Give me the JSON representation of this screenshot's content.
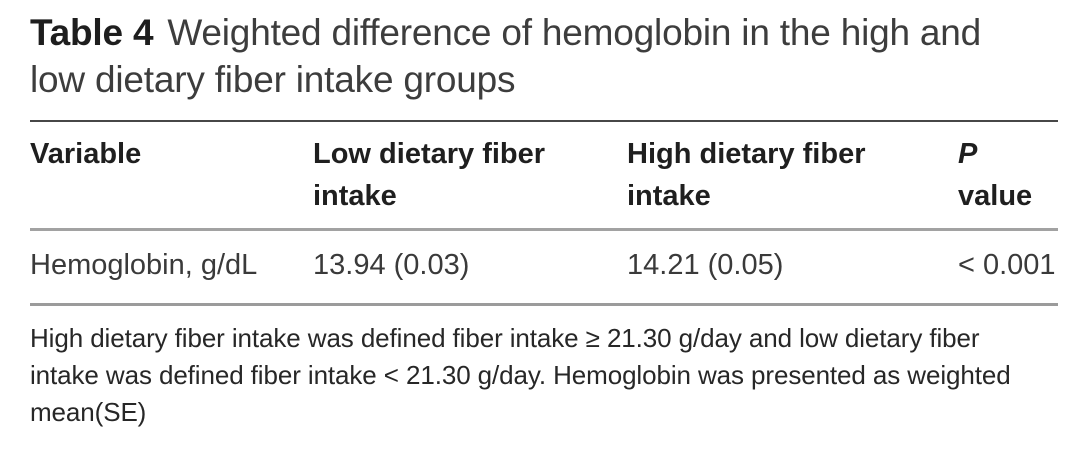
{
  "table": {
    "label": "Table 4",
    "title": "Weighted difference of hemoglobin in the high and low dietary fiber intake groups",
    "columns": [
      {
        "label": "Variable"
      },
      {
        "label": "Low dietary fiber intake"
      },
      {
        "label": "High dietary fiber intake"
      },
      {
        "label_italic": "P",
        "label_rest": "value"
      }
    ],
    "rows": [
      [
        "Hemoglobin, g/dL",
        "13.94 (0.03)",
        "14.21 (0.05)",
        "< 0.001"
      ]
    ],
    "footnote": "High dietary fiber intake was defined fiber intake ≥ 21.30 g/day and low dietary fiber intake was defined fiber intake < 21.30 g/day. Hemoglobin was presented as weighted mean(SE)"
  },
  "colors": {
    "background": "#ffffff",
    "caption_label_text": "#1e1e1e",
    "caption_text": "#3d3d3d",
    "header_text": "#1f1f1f",
    "body_text": "#3a3a3a",
    "rule_top": "#474747",
    "rule_mid": "#a2a2a2",
    "rule_bottom": "#9b9b9b"
  }
}
